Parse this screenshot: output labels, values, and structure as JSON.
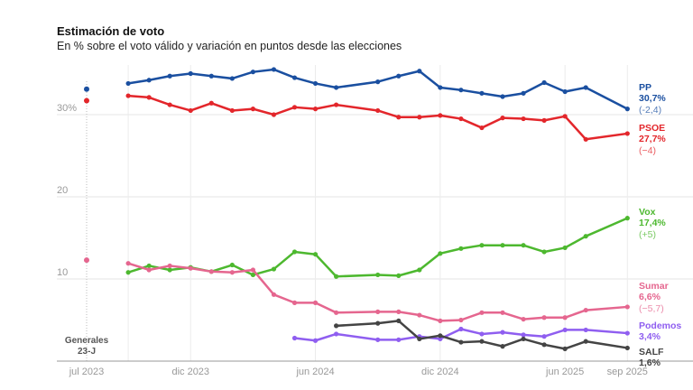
{
  "title": "Estimación de voto",
  "subtitle": "En % sobre el voto válido y variación en puntos desde las elecciones",
  "chart_data": {
    "type": "line",
    "title": "Estimación de voto",
    "ylim": [
      0,
      35
    ],
    "y_ticks": [
      {
        "v": 10,
        "label": "10"
      },
      {
        "v": 20,
        "label": "20"
      },
      {
        "v": 30,
        "label": "30%"
      }
    ],
    "x_ticks": [
      {
        "x": "2023-07",
        "label": "jul 2023"
      },
      {
        "x": "2023-12",
        "label": "dic 2023"
      },
      {
        "x": "2024-06",
        "label": "jun 2024"
      },
      {
        "x": "2024-12",
        "label": "dic 2024"
      },
      {
        "x": "2025-06",
        "label": "jun 2025"
      },
      {
        "x": "2025-09",
        "label": "sep 2025"
      }
    ],
    "grid": true,
    "election": {
      "x": "2023-07",
      "label_line1": "Generales",
      "label_line2": "23-J",
      "values": {
        "PP": 33.1,
        "PSOE": 31.7,
        "Sumar": 12.3
      }
    },
    "x": [
      "2023-09",
      "2023-10",
      "2023-11",
      "2023-12",
      "2024-01",
      "2024-02",
      "2024-03",
      "2024-04",
      "2024-05",
      "2024-06",
      "2024-07",
      "2024-09",
      "2024-10",
      "2024-11",
      "2024-12",
      "2025-01",
      "2025-02",
      "2025-03",
      "2025-04",
      "2025-05",
      "2025-06",
      "2025-07",
      "2025-09"
    ],
    "series": [
      {
        "name": "PP",
        "color": "#1a4fa0",
        "last": "30,7%",
        "change": "(-2,4)",
        "values": [
          33.8,
          34.2,
          34.7,
          35.0,
          34.7,
          34.4,
          35.2,
          35.5,
          34.5,
          33.8,
          33.3,
          34.0,
          34.7,
          35.3,
          33.3,
          33.0,
          32.6,
          32.2,
          32.6,
          33.9,
          32.8,
          33.3,
          30.7
        ]
      },
      {
        "name": "PSOE",
        "color": "#e3262b",
        "last": "27,7%",
        "change": "(−4)",
        "values": [
          32.3,
          32.1,
          31.2,
          30.5,
          31.4,
          30.5,
          30.7,
          30.0,
          30.9,
          30.7,
          31.2,
          30.5,
          29.7,
          29.7,
          29.9,
          29.5,
          28.4,
          29.6,
          29.5,
          29.3,
          29.8,
          27.0,
          27.7
        ]
      },
      {
        "name": "Vox",
        "color": "#4db82f",
        "last": "17,4%",
        "change": "(+5)",
        "values": [
          10.8,
          11.6,
          11.1,
          11.4,
          10.9,
          11.7,
          10.5,
          11.2,
          13.3,
          13.0,
          10.3,
          10.5,
          10.4,
          11.1,
          13.1,
          13.7,
          14.1,
          14.1,
          14.1,
          13.3,
          13.8,
          15.2,
          17.4
        ]
      },
      {
        "name": "Sumar",
        "color": "#e5668f",
        "last": "6,6%",
        "change": "(−5,7)",
        "values": [
          11.9,
          11.1,
          11.6,
          11.3,
          10.9,
          10.8,
          11.1,
          8.1,
          7.1,
          7.1,
          5.9,
          6.0,
          6.0,
          5.6,
          4.9,
          5.0,
          5.9,
          5.9,
          5.1,
          5.3,
          5.3,
          6.2,
          6.6
        ]
      },
      {
        "name": "Podemos",
        "color": "#8f5ef0",
        "last": "3,4%",
        "change": "",
        "values": [
          null,
          null,
          null,
          null,
          null,
          null,
          null,
          null,
          2.8,
          2.5,
          3.3,
          2.6,
          2.6,
          3.0,
          2.7,
          3.9,
          3.3,
          3.5,
          3.2,
          3.0,
          3.8,
          3.8,
          3.4
        ]
      },
      {
        "name": "SALF",
        "color": "#444444",
        "last": "1,6%",
        "change": "",
        "values": [
          null,
          null,
          null,
          null,
          null,
          null,
          null,
          null,
          null,
          null,
          4.3,
          4.6,
          4.9,
          2.7,
          3.1,
          2.3,
          2.4,
          1.8,
          2.7,
          2.0,
          1.5,
          2.4,
          1.6
        ]
      }
    ]
  }
}
